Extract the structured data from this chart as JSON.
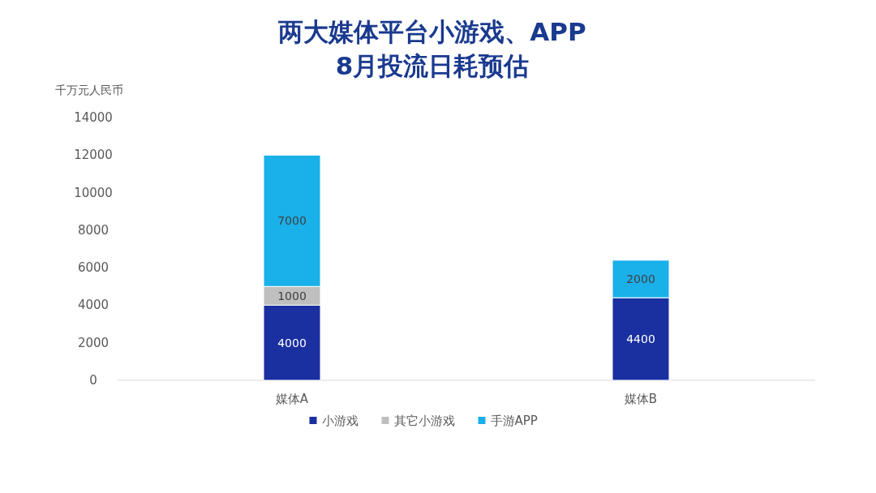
{
  "chart_data": {
    "type": "bar",
    "title": "两大媒体平台小游戏、APP",
    "subtitle": "8月投流日耗预估",
    "ylabel": "千万元人民币",
    "categories": [
      "媒体A",
      "媒体B"
    ],
    "stacked": true,
    "data_labels": true,
    "legend": "bottom",
    "grid": false,
    "ylim": [
      0,
      14000
    ],
    "yticks": [
      0,
      2000,
      4000,
      6000,
      8000,
      10000,
      12000,
      14000
    ],
    "series": [
      {
        "name": "小游戏",
        "color": "#1a2fa0",
        "values": [
          4000,
          4400
        ]
      },
      {
        "name": "其它小游戏",
        "color": "#bfbfbf",
        "values": [
          1000,
          null
        ]
      },
      {
        "name": "手游APP",
        "color": "#1ab0ea",
        "values": [
          7000,
          2000
        ]
      }
    ]
  }
}
